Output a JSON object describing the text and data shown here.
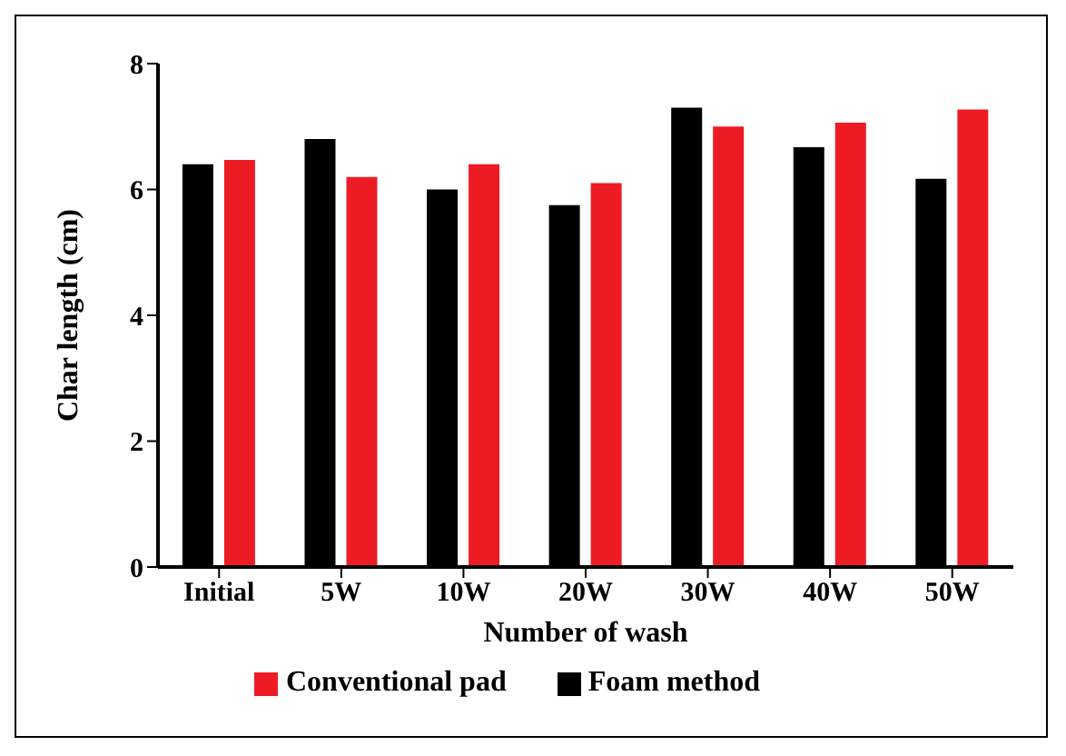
{
  "chart_data": {
    "type": "bar",
    "xlabel": "Number of wash",
    "ylabel": "Char length (cm)",
    "categories": [
      "Initial",
      "5W",
      "10W",
      "20W",
      "30W",
      "40W",
      "50W"
    ],
    "series": [
      {
        "name": "Foam method",
        "color": "#000000",
        "values": [
          6.4,
          6.8,
          6.0,
          5.75,
          7.3,
          6.67,
          6.17
        ]
      },
      {
        "name": "Conventional pad",
        "color": "#ed1c24",
        "values": [
          6.47,
          6.2,
          6.4,
          6.1,
          7.0,
          7.06,
          7.27
        ]
      }
    ],
    "ylim": [
      0,
      8
    ],
    "yticks": [
      0,
      2,
      4,
      6,
      8
    ],
    "grid": false,
    "legend": "bottom"
  }
}
